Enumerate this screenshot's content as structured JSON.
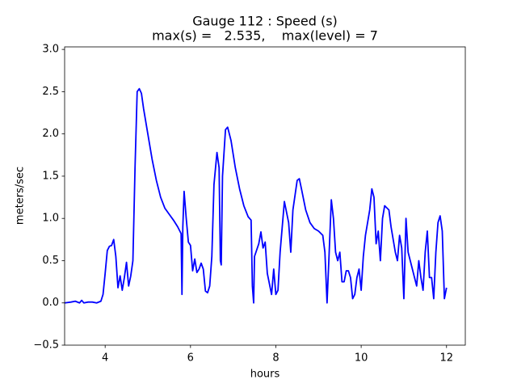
{
  "chart_data": {
    "type": "line",
    "title": [
      "Gauge 112 : Speed (s)",
      "max(s) =   2.535,    max(level) = 7"
    ],
    "xlabel": "hours",
    "ylabel": "meters/sec",
    "color": "#0000ff",
    "xlim": [
      3.05,
      12.44
    ],
    "ylim": [
      -0.5,
      3.03
    ],
    "xticks": [
      4,
      6,
      8,
      10,
      12
    ],
    "yticks": [
      {
        "value": -0.5,
        "label": "−0.5"
      },
      {
        "value": 0,
        "label": "0.0"
      },
      0.5,
      {
        "value": 1,
        "label": "1.0"
      },
      1.5,
      {
        "value": 2,
        "label": "2.0"
      },
      2.5,
      {
        "value": 3,
        "label": "3.0"
      }
    ],
    "x": [
      3.05,
      3.2,
      3.3,
      3.4,
      3.45,
      3.5,
      3.6,
      3.7,
      3.8,
      3.9,
      3.95,
      4.0,
      4.05,
      4.1,
      4.15,
      4.2,
      4.25,
      4.3,
      4.35,
      4.4,
      4.45,
      4.5,
      4.55,
      4.6,
      4.65,
      4.7,
      4.75,
      4.8,
      4.85,
      4.9,
      5.0,
      5.1,
      5.2,
      5.3,
      5.4,
      5.5,
      5.6,
      5.7,
      5.75,
      5.78,
      5.8,
      5.82,
      5.85,
      5.9,
      5.95,
      6.0,
      6.05,
      6.1,
      6.15,
      6.2,
      6.25,
      6.3,
      6.35,
      6.4,
      6.45,
      6.5,
      6.55,
      6.62,
      6.67,
      6.7,
      6.72,
      6.75,
      6.82,
      6.87,
      6.95,
      7.05,
      7.15,
      7.25,
      7.35,
      7.42,
      7.45,
      7.48,
      7.5,
      7.6,
      7.65,
      7.7,
      7.75,
      7.8,
      7.9,
      7.95,
      8.0,
      8.05,
      8.1,
      8.2,
      8.3,
      8.35,
      8.4,
      8.5,
      8.55,
      8.6,
      8.7,
      8.8,
      8.9,
      9.0,
      9.1,
      9.15,
      9.2,
      9.25,
      9.3,
      9.35,
      9.4,
      9.45,
      9.5,
      9.55,
      9.6,
      9.65,
      9.7,
      9.75,
      9.8,
      9.85,
      9.9,
      9.95,
      10.0,
      10.05,
      10.1,
      10.2,
      10.25,
      10.3,
      10.35,
      10.4,
      10.45,
      10.5,
      10.55,
      10.65,
      10.7,
      10.8,
      10.85,
      10.9,
      10.95,
      11.0,
      11.05,
      11.1,
      11.15,
      11.25,
      11.3,
      11.35,
      11.4,
      11.45,
      11.5,
      11.55,
      11.6,
      11.65,
      11.7,
      11.75,
      11.8,
      11.85,
      11.9,
      11.95,
      12.0
    ],
    "values": [
      0.0,
      0.01,
      0.02,
      0.0,
      0.03,
      0.0,
      0.01,
      0.01,
      0.0,
      0.02,
      0.1,
      0.35,
      0.62,
      0.67,
      0.68,
      0.75,
      0.55,
      0.18,
      0.32,
      0.15,
      0.3,
      0.48,
      0.2,
      0.32,
      0.5,
      1.6,
      2.5,
      2.535,
      2.48,
      2.3,
      2.0,
      1.7,
      1.45,
      1.25,
      1.12,
      1.05,
      0.98,
      0.9,
      0.85,
      0.82,
      0.1,
      0.9,
      1.32,
      1.0,
      0.72,
      0.68,
      0.38,
      0.52,
      0.36,
      0.4,
      0.47,
      0.4,
      0.14,
      0.12,
      0.2,
      0.55,
      1.4,
      1.78,
      1.6,
      0.5,
      0.45,
      1.5,
      2.05,
      2.08,
      1.92,
      1.6,
      1.35,
      1.15,
      1.02,
      0.98,
      0.2,
      0.0,
      0.55,
      0.7,
      0.84,
      0.65,
      0.72,
      0.35,
      0.1,
      0.4,
      0.1,
      0.15,
      0.6,
      1.2,
      0.95,
      0.6,
      1.1,
      1.45,
      1.47,
      1.35,
      1.1,
      0.95,
      0.88,
      0.85,
      0.8,
      0.6,
      0.0,
      0.6,
      1.22,
      1.0,
      0.6,
      0.5,
      0.6,
      0.25,
      0.25,
      0.38,
      0.38,
      0.3,
      0.05,
      0.1,
      0.3,
      0.4,
      0.15,
      0.55,
      0.8,
      1.1,
      1.35,
      1.25,
      0.7,
      0.85,
      0.5,
      1.0,
      1.15,
      1.1,
      0.9,
      0.6,
      0.5,
      0.8,
      0.65,
      0.05,
      1.0,
      0.6,
      0.5,
      0.3,
      0.2,
      0.5,
      0.3,
      0.15,
      0.6,
      0.85,
      0.3,
      0.3,
      0.05,
      0.6,
      0.95,
      1.03,
      0.85,
      0.05,
      0.18
    ]
  }
}
